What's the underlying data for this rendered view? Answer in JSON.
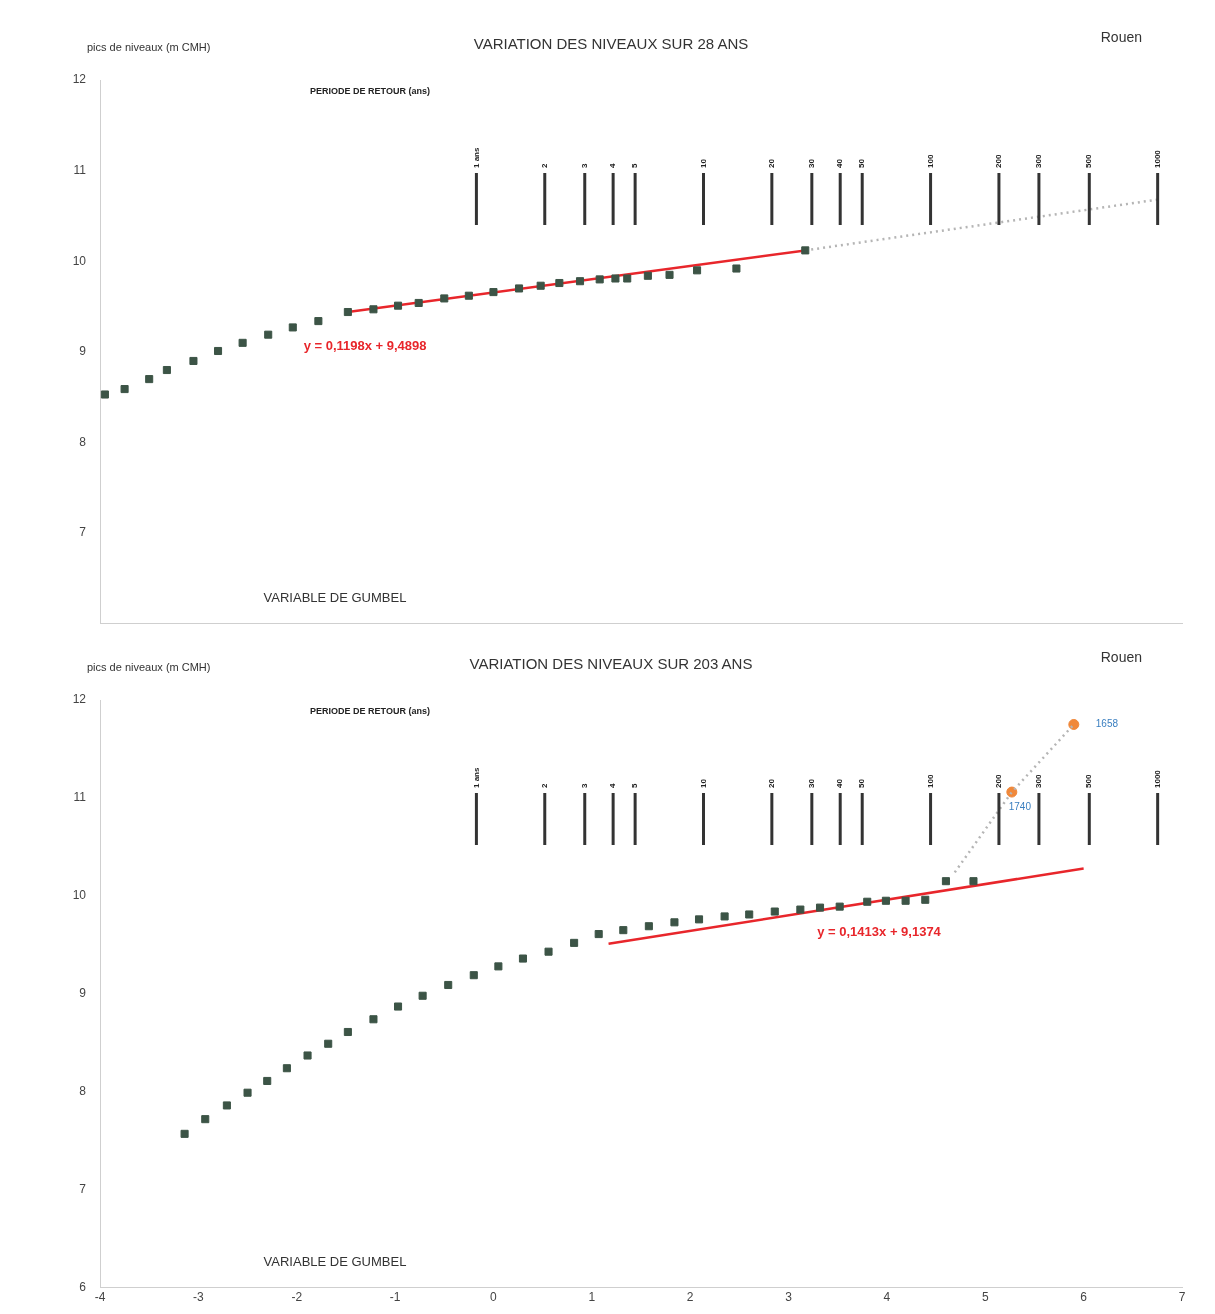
{
  "chart_data": [
    {
      "type": "scatter",
      "title": "VARIATION DES NIVEAUX SUR 28 ANS",
      "ylabel": "pics de niveaux (m CMH)",
      "xlabel": "VARIABLE DE GUMBEL",
      "x2label": "PERIODE DE RETOUR (ans)",
      "annotations": [
        "Rouen",
        "y = 0,1198x + 9,4898"
      ],
      "xlim": [
        -4,
        7
      ],
      "ylim": [
        6,
        12
      ],
      "yticks": [
        7,
        8,
        9,
        10,
        11,
        12
      ],
      "tick_labels": "y",
      "grid": false,
      "legend": false,
      "marker": "square",
      "log": "x2",
      "x2lim": [
        0.022,
        1280
      ],
      "x2ticks": [
        {
          "value": 1,
          "label": "1 ans"
        },
        2,
        3,
        4,
        5,
        10,
        20,
        30,
        40,
        50,
        100,
        200,
        300,
        500,
        1000
      ],
      "ref_lines": [
        {
          "axis": "x2",
          "value": 1
        },
        {
          "axis": "x2",
          "value": 2
        },
        {
          "axis": "x2",
          "value": 3
        },
        {
          "axis": "x2",
          "value": 4
        },
        {
          "axis": "x2",
          "value": 5
        },
        {
          "axis": "x2",
          "value": 10
        },
        {
          "axis": "x2",
          "value": 20
        },
        {
          "axis": "x2",
          "value": 30
        },
        {
          "axis": "x2",
          "value": 40
        },
        {
          "axis": "x2",
          "value": 50
        },
        {
          "axis": "x2",
          "value": 100
        },
        {
          "axis": "x2",
          "value": 200
        },
        {
          "axis": "x2",
          "value": 300
        },
        {
          "axis": "x2",
          "value": 500
        },
        {
          "axis": "x2",
          "value": 1000
        }
      ],
      "series": [
        {
          "type": "scatter",
          "color": "#3c5446",
          "x": [
            -3.95,
            -3.75,
            -3.5,
            -3.32,
            -3.05,
            -2.8,
            -2.55,
            -2.29,
            -2.04,
            -1.78,
            -1.48,
            -1.22,
            -0.97,
            -0.76,
            -0.5,
            -0.25,
            0.0,
            0.26,
            0.48,
            0.67,
            0.88,
            1.08,
            1.24,
            1.36,
            1.57,
            1.79,
            2.07,
            2.47,
            3.17
          ],
          "values": [
            8.53,
            8.59,
            8.7,
            8.8,
            8.9,
            9.01,
            9.1,
            9.19,
            9.27,
            9.34,
            9.44,
            9.47,
            9.51,
            9.54,
            9.59,
            9.62,
            9.66,
            9.7,
            9.73,
            9.76,
            9.78,
            9.8,
            9.81,
            9.81,
            9.84,
            9.85,
            9.9,
            9.92,
            10.12
          ]
        },
        {
          "type": "line",
          "color": "#e8262b",
          "marker": "none",
          "line_style": "solid",
          "x": [
            -1.48,
            3.17
          ],
          "values": [
            9.44,
            10.12
          ]
        },
        {
          "type": "line",
          "color": "#b5b5b5",
          "marker": "none",
          "line_style": "dotted",
          "x": [
            3.17,
            6.75
          ],
          "values": [
            10.12,
            10.68
          ]
        }
      ]
    },
    {
      "type": "scatter",
      "title": "VARIATION DES NIVEAUX SUR 203 ANS",
      "ylabel": "pics de niveaux (m CMH)",
      "xlabel": "VARIABLE DE GUMBEL",
      "x2label": "PERIODE DE RETOUR (ans)",
      "annotations": [
        "Rouen",
        "y = 0,1413x + 9,1374",
        {
          "text": "1740",
          "x": 5.27,
          "y": 11.06
        },
        {
          "text": "1658",
          "x": 5.9,
          "y": 11.75
        }
      ],
      "xlim": [
        -4,
        7
      ],
      "ylim": [
        6,
        12
      ],
      "xticks": [
        -4,
        -3,
        -2,
        -1,
        0,
        1,
        2,
        3,
        4,
        5,
        6,
        7
      ],
      "yticks": [
        6,
        7,
        8,
        9,
        10,
        11,
        12
      ],
      "grid": false,
      "legend": false,
      "marker": "square",
      "log": "x2",
      "x2lim": [
        0.022,
        1280
      ],
      "x2ticks": [
        {
          "value": 1,
          "label": "1 ans"
        },
        2,
        3,
        4,
        5,
        10,
        20,
        30,
        40,
        50,
        100,
        200,
        300,
        500,
        1000
      ],
      "ref_lines": [
        {
          "axis": "x2",
          "value": 1
        },
        {
          "axis": "x2",
          "value": 2
        },
        {
          "axis": "x2",
          "value": 3
        },
        {
          "axis": "x2",
          "value": 4
        },
        {
          "axis": "x2",
          "value": 5
        },
        {
          "axis": "x2",
          "value": 10
        },
        {
          "axis": "x2",
          "value": 20
        },
        {
          "axis": "x2",
          "value": 30
        },
        {
          "axis": "x2",
          "value": 40
        },
        {
          "axis": "x2",
          "value": 50
        },
        {
          "axis": "x2",
          "value": 100
        },
        {
          "axis": "x2",
          "value": 200
        },
        {
          "axis": "x2",
          "value": 300
        },
        {
          "axis": "x2",
          "value": 500
        },
        {
          "axis": "x2",
          "value": 1000
        }
      ],
      "series": [
        {
          "type": "scatter",
          "color": "#3c5446",
          "x": [
            -3.14,
            -2.93,
            -2.71,
            -2.5,
            -2.3,
            -2.1,
            -1.89,
            -1.68,
            -1.48,
            -1.22,
            -0.97,
            -0.72,
            -0.46,
            -0.2,
            0.05,
            0.3,
            0.56,
            0.82,
            1.07,
            1.32,
            1.58,
            1.84,
            2.09,
            2.35,
            2.6,
            2.86,
            3.12,
            3.32,
            3.52,
            3.8,
            3.99,
            4.19,
            4.39,
            4.6,
            4.88
          ],
          "values": [
            7.57,
            7.72,
            7.86,
            7.99,
            8.11,
            8.24,
            8.37,
            8.49,
            8.61,
            8.74,
            8.87,
            8.98,
            9.09,
            9.19,
            9.28,
            9.36,
            9.43,
            9.52,
            9.61,
            9.65,
            9.69,
            9.73,
            9.76,
            9.79,
            9.81,
            9.84,
            9.86,
            9.88,
            9.89,
            9.94,
            9.95,
            9.95,
            9.96,
            10.15,
            10.15
          ]
        },
        {
          "type": "line",
          "color": "#e8262b",
          "marker": "none",
          "line_style": "solid",
          "x": [
            1.17,
            6.0
          ],
          "values": [
            9.51,
            10.28
          ]
        },
        {
          "type": "line",
          "color": "#b5b5b5",
          "marker": "none",
          "line_style": "dotted",
          "x": [
            4.69,
            5.27,
            5.9
          ],
          "values": [
            10.24,
            11.06,
            11.75
          ]
        },
        {
          "type": "scatter",
          "color": "#f0883a",
          "marker": "circle",
          "x": [
            5.27,
            5.9
          ],
          "values": [
            11.06,
            11.75
          ]
        }
      ]
    }
  ]
}
